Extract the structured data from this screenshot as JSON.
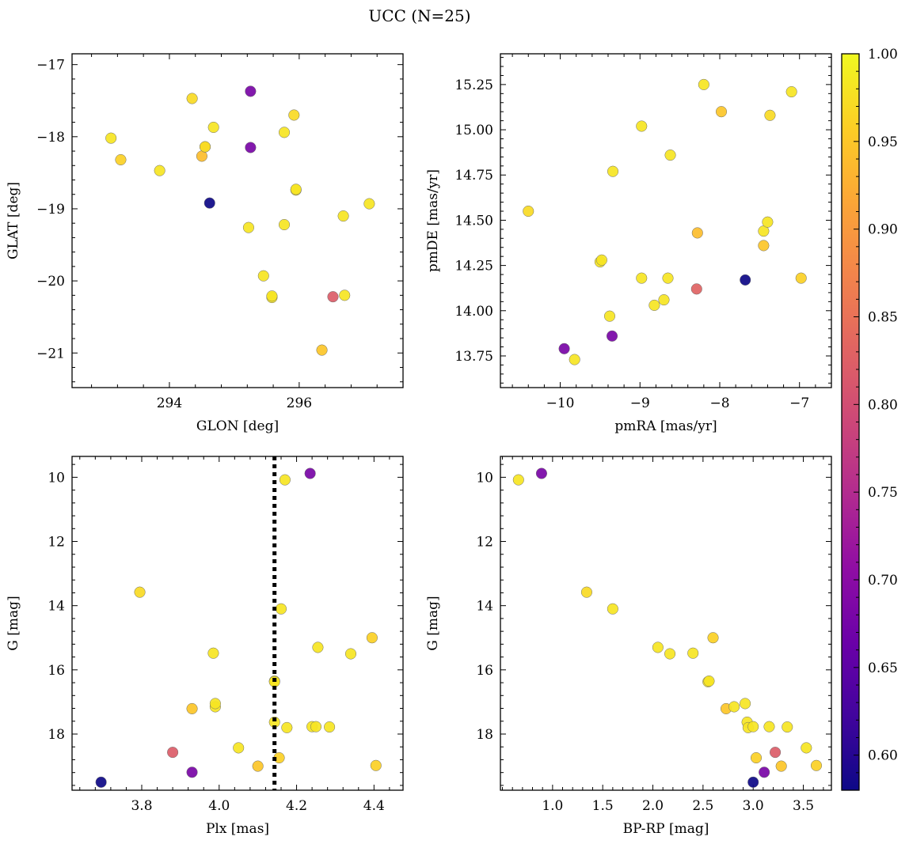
{
  "figure": {
    "title": "UCC (N=25)"
  },
  "colormap": {
    "name": "plasma",
    "range": [
      0.58,
      1.0
    ]
  },
  "colorbar": {
    "ticks": [
      "0.60",
      "0.65",
      "0.70",
      "0.75",
      "0.80",
      "0.85",
      "0.90",
      "0.95",
      "1.00"
    ],
    "tick_values": [
      0.6,
      0.65,
      0.7,
      0.75,
      0.8,
      0.85,
      0.9,
      0.95,
      1.0
    ]
  },
  "chart_data": [
    {
      "type": "scatter",
      "id": "glon-glat",
      "xlabel": "GLON [deg]",
      "ylabel": "GLAT [deg]",
      "xlim": [
        292.5,
        297.6
      ],
      "ylim": [
        -21.48,
        -16.85
      ],
      "xticks": [
        294,
        296
      ],
      "xtick_labels": [
        "294",
        "296"
      ],
      "yticks": [
        -17,
        -18,
        -19,
        -20,
        -21
      ],
      "ytick_labels": [
        "−17",
        "−18",
        "−19",
        "−20",
        "−21"
      ],
      "points": [
        {
          "x": 293.1,
          "y": -18.02,
          "c": 0.98
        },
        {
          "x": 293.25,
          "y": -18.32,
          "c": 0.96
        },
        {
          "x": 293.85,
          "y": -18.47,
          "c": 0.98
        },
        {
          "x": 294.35,
          "y": -17.47,
          "c": 0.97
        },
        {
          "x": 294.5,
          "y": -18.27,
          "c": 0.94
        },
        {
          "x": 294.55,
          "y": -18.14,
          "c": 0.97
        },
        {
          "x": 294.55,
          "y": -18.14,
          "c": 0.97
        },
        {
          "x": 294.62,
          "y": -18.92,
          "c": 0.58
        },
        {
          "x": 294.68,
          "y": -17.87,
          "c": 0.98
        },
        {
          "x": 295.25,
          "y": -17.37,
          "c": 0.68
        },
        {
          "x": 295.25,
          "y": -18.15,
          "c": 0.68
        },
        {
          "x": 295.22,
          "y": -19.26,
          "c": 0.98
        },
        {
          "x": 295.45,
          "y": -19.93,
          "c": 0.98
        },
        {
          "x": 295.58,
          "y": -20.23,
          "c": 0.98
        },
        {
          "x": 295.58,
          "y": -20.21,
          "c": 0.98
        },
        {
          "x": 295.77,
          "y": -17.94,
          "c": 0.98
        },
        {
          "x": 295.77,
          "y": -19.22,
          "c": 0.98
        },
        {
          "x": 295.92,
          "y": -17.7,
          "c": 0.97
        },
        {
          "x": 295.95,
          "y": -18.74,
          "c": 0.98
        },
        {
          "x": 295.95,
          "y": -18.73,
          "c": 0.98
        },
        {
          "x": 296.35,
          "y": -20.96,
          "c": 0.95
        },
        {
          "x": 296.52,
          "y": -20.22,
          "c": 0.82
        },
        {
          "x": 296.68,
          "y": -19.1,
          "c": 0.98
        },
        {
          "x": 296.7,
          "y": -20.2,
          "c": 0.98
        },
        {
          "x": 297.08,
          "y": -18.93,
          "c": 0.98
        }
      ]
    },
    {
      "type": "scatter",
      "id": "pmra-pmde",
      "xlabel": "pmRA [mas/yr]",
      "ylabel": "pmDE [mas/yr]",
      "xlim": [
        -10.75,
        -6.6
      ],
      "ylim": [
        13.575,
        15.42
      ],
      "xticks": [
        -10,
        -9,
        -8,
        -7
      ],
      "xtick_labels": [
        "−10",
        "−9",
        "−8",
        "−7"
      ],
      "yticks": [
        13.75,
        14.0,
        14.25,
        14.5,
        14.75,
        15.0,
        15.25
      ],
      "ytick_labels": [
        "13.75",
        "14.00",
        "14.25",
        "14.50",
        "14.75",
        "15.00",
        "15.25"
      ],
      "points": [
        {
          "x": -10.4,
          "y": 14.55,
          "c": 0.97
        },
        {
          "x": -9.95,
          "y": 13.79,
          "c": 0.68
        },
        {
          "x": -9.82,
          "y": 13.73,
          "c": 0.98
        },
        {
          "x": -9.5,
          "y": 14.27,
          "c": 0.98
        },
        {
          "x": -9.48,
          "y": 14.28,
          "c": 0.98
        },
        {
          "x": -9.38,
          "y": 13.97,
          "c": 0.98
        },
        {
          "x": -9.34,
          "y": 14.77,
          "c": 0.98
        },
        {
          "x": -9.35,
          "y": 13.86,
          "c": 0.68
        },
        {
          "x": -8.98,
          "y": 15.02,
          "c": 0.98
        },
        {
          "x": -8.98,
          "y": 14.18,
          "c": 0.98
        },
        {
          "x": -8.82,
          "y": 14.03,
          "c": 0.98
        },
        {
          "x": -8.7,
          "y": 14.06,
          "c": 0.98
        },
        {
          "x": -8.65,
          "y": 14.18,
          "c": 0.98
        },
        {
          "x": -8.62,
          "y": 14.86,
          "c": 0.98
        },
        {
          "x": -8.29,
          "y": 14.12,
          "c": 0.83
        },
        {
          "x": -8.28,
          "y": 14.43,
          "c": 0.94
        },
        {
          "x": -8.2,
          "y": 15.25,
          "c": 0.98
        },
        {
          "x": -7.98,
          "y": 15.1,
          "c": 0.95
        },
        {
          "x": -7.68,
          "y": 14.17,
          "c": 0.58
        },
        {
          "x": -7.45,
          "y": 14.44,
          "c": 0.98
        },
        {
          "x": -7.45,
          "y": 14.36,
          "c": 0.95
        },
        {
          "x": -7.4,
          "y": 14.49,
          "c": 0.98
        },
        {
          "x": -7.37,
          "y": 15.08,
          "c": 0.97
        },
        {
          "x": -7.1,
          "y": 15.21,
          "c": 0.98
        },
        {
          "x": -6.98,
          "y": 14.18,
          "c": 0.96
        }
      ]
    },
    {
      "type": "scatter",
      "id": "plx-g",
      "xlabel": "Plx [mas]",
      "ylabel": "G [mag]",
      "xlim": [
        3.62,
        4.475
      ],
      "ylim": [
        19.75,
        9.35
      ],
      "y_inverted": true,
      "xticks": [
        3.8,
        4.0,
        4.2,
        4.4
      ],
      "xtick_labels": [
        "3.8",
        "4.0",
        "4.2",
        "4.4"
      ],
      "yticks": [
        10,
        12,
        14,
        16,
        18
      ],
      "ytick_labels": [
        "10",
        "12",
        "14",
        "16",
        "18"
      ],
      "vline": 4.143,
      "points": [
        {
          "x": 3.695,
          "y": 19.5,
          "c": 0.58
        },
        {
          "x": 3.795,
          "y": 13.58,
          "c": 0.97
        },
        {
          "x": 3.88,
          "y": 18.57,
          "c": 0.82
        },
        {
          "x": 3.93,
          "y": 17.21,
          "c": 0.95
        },
        {
          "x": 3.93,
          "y": 19.19,
          "c": 0.68
        },
        {
          "x": 3.985,
          "y": 15.48,
          "c": 0.98
        },
        {
          "x": 3.99,
          "y": 17.15,
          "c": 0.98
        },
        {
          "x": 3.99,
          "y": 17.05,
          "c": 0.98
        },
        {
          "x": 4.05,
          "y": 18.43,
          "c": 0.98
        },
        {
          "x": 4.1,
          "y": 19.0,
          "c": 0.95
        },
        {
          "x": 4.143,
          "y": 16.35,
          "c": 0.98
        },
        {
          "x": 4.143,
          "y": 16.37,
          "c": 0.98
        },
        {
          "x": 4.143,
          "y": 17.63,
          "c": 0.98
        },
        {
          "x": 4.155,
          "y": 18.74,
          "c": 0.96
        },
        {
          "x": 4.16,
          "y": 14.1,
          "c": 0.98
        },
        {
          "x": 4.17,
          "y": 10.08,
          "c": 0.98
        },
        {
          "x": 4.175,
          "y": 17.8,
          "c": 0.98
        },
        {
          "x": 4.235,
          "y": 9.88,
          "c": 0.68
        },
        {
          "x": 4.24,
          "y": 17.77,
          "c": 0.98
        },
        {
          "x": 4.25,
          "y": 17.77,
          "c": 0.98
        },
        {
          "x": 4.255,
          "y": 15.3,
          "c": 0.98
        },
        {
          "x": 4.285,
          "y": 17.78,
          "c": 0.98
        },
        {
          "x": 4.34,
          "y": 15.5,
          "c": 0.98
        },
        {
          "x": 4.395,
          "y": 15.0,
          "c": 0.96
        },
        {
          "x": 4.405,
          "y": 18.98,
          "c": 0.96
        }
      ]
    },
    {
      "type": "scatter",
      "id": "bprp-g",
      "xlabel": "BP-RP [mag]",
      "ylabel": "G [mag]",
      "xlim": [
        0.48,
        3.78
      ],
      "ylim": [
        19.75,
        9.35
      ],
      "y_inverted": true,
      "xticks": [
        1.0,
        1.5,
        2.0,
        2.5,
        3.0,
        3.5
      ],
      "xtick_labels": [
        "1.0",
        "1.5",
        "2.0",
        "2.5",
        "3.0",
        "3.5"
      ],
      "yticks": [
        10,
        12,
        14,
        16,
        18
      ],
      "ytick_labels": [
        "10",
        "12",
        "14",
        "16",
        "18"
      ],
      "points": [
        {
          "x": 0.66,
          "y": 10.08,
          "c": 0.98
        },
        {
          "x": 0.89,
          "y": 9.88,
          "c": 0.68
        },
        {
          "x": 1.34,
          "y": 13.58,
          "c": 0.97
        },
        {
          "x": 1.6,
          "y": 14.1,
          "c": 0.98
        },
        {
          "x": 2.05,
          "y": 15.3,
          "c": 0.98
        },
        {
          "x": 2.17,
          "y": 15.5,
          "c": 0.98
        },
        {
          "x": 2.4,
          "y": 15.48,
          "c": 0.98
        },
        {
          "x": 2.55,
          "y": 16.37,
          "c": 0.98
        },
        {
          "x": 2.56,
          "y": 16.35,
          "c": 0.98
        },
        {
          "x": 2.6,
          "y": 15.0,
          "c": 0.96
        },
        {
          "x": 2.73,
          "y": 17.21,
          "c": 0.95
        },
        {
          "x": 2.81,
          "y": 17.15,
          "c": 0.98
        },
        {
          "x": 2.92,
          "y": 17.05,
          "c": 0.98
        },
        {
          "x": 2.94,
          "y": 17.63,
          "c": 0.98
        },
        {
          "x": 2.95,
          "y": 17.8,
          "c": 0.98
        },
        {
          "x": 3.0,
          "y": 17.77,
          "c": 0.98
        },
        {
          "x": 3.0,
          "y": 19.5,
          "c": 0.58
        },
        {
          "x": 3.03,
          "y": 18.74,
          "c": 0.96
        },
        {
          "x": 3.11,
          "y": 19.19,
          "c": 0.68
        },
        {
          "x": 3.16,
          "y": 17.77,
          "c": 0.98
        },
        {
          "x": 3.22,
          "y": 18.57,
          "c": 0.82
        },
        {
          "x": 3.28,
          "y": 19.0,
          "c": 0.95
        },
        {
          "x": 3.34,
          "y": 17.78,
          "c": 0.98
        },
        {
          "x": 3.53,
          "y": 18.43,
          "c": 0.98
        },
        {
          "x": 3.63,
          "y": 18.98,
          "c": 0.96
        }
      ]
    }
  ]
}
